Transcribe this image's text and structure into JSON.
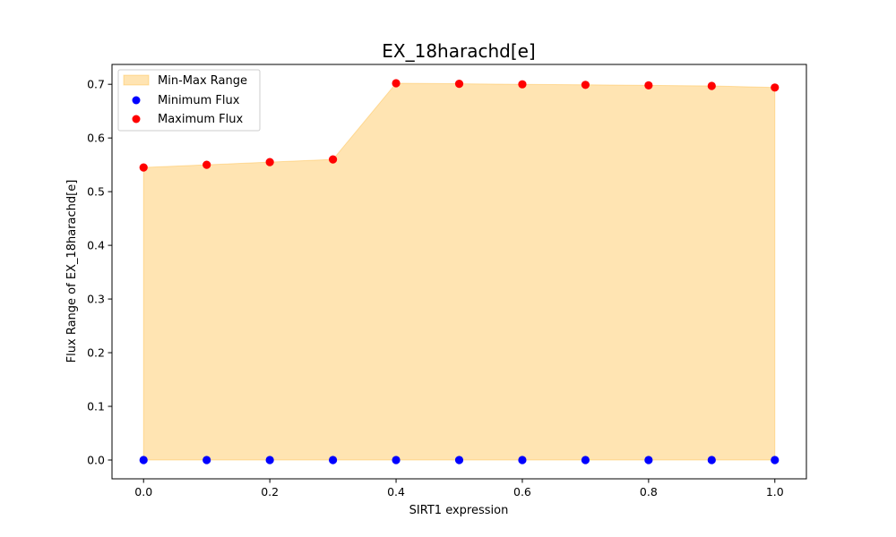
{
  "chart_data": {
    "type": "area",
    "title": "EX_18harachd[e]",
    "xlabel": "SIRT1 expression",
    "ylabel": "Flux Range of EX_18harachd[e]",
    "x": [
      0.0,
      0.1,
      0.2,
      0.3,
      0.4,
      0.5,
      0.6,
      0.7,
      0.8,
      0.9,
      1.0
    ],
    "series": [
      {
        "name": "Min-Max Range",
        "kind": "fill_between",
        "color": "#ffa500",
        "alpha": 0.3
      },
      {
        "name": "Minimum Flux",
        "kind": "scatter",
        "color": "#0000ff",
        "values": [
          0,
          0,
          0,
          0,
          0,
          0,
          0,
          0,
          0,
          0,
          0
        ]
      },
      {
        "name": "Maximum Flux",
        "kind": "scatter",
        "color": "#ff0000",
        "values": [
          0.545,
          0.55,
          0.555,
          0.56,
          0.702,
          0.701,
          0.7,
          0.699,
          0.698,
          0.697,
          0.694
        ]
      }
    ],
    "xlim": [
      -0.05,
      1.05
    ],
    "ylim": [
      -0.035,
      0.737
    ],
    "xticks": [
      "0.0",
      "0.2",
      "0.4",
      "0.6",
      "0.8",
      "1.0"
    ],
    "xtick_values": [
      0.0,
      0.2,
      0.4,
      0.6,
      0.8,
      1.0
    ],
    "yticks": [
      "0.0",
      "0.1",
      "0.2",
      "0.3",
      "0.4",
      "0.5",
      "0.6",
      "0.7"
    ],
    "ytick_values": [
      0.0,
      0.1,
      0.2,
      0.3,
      0.4,
      0.5,
      0.6,
      0.7
    ],
    "grid": false,
    "legend_position": "top-left"
  }
}
